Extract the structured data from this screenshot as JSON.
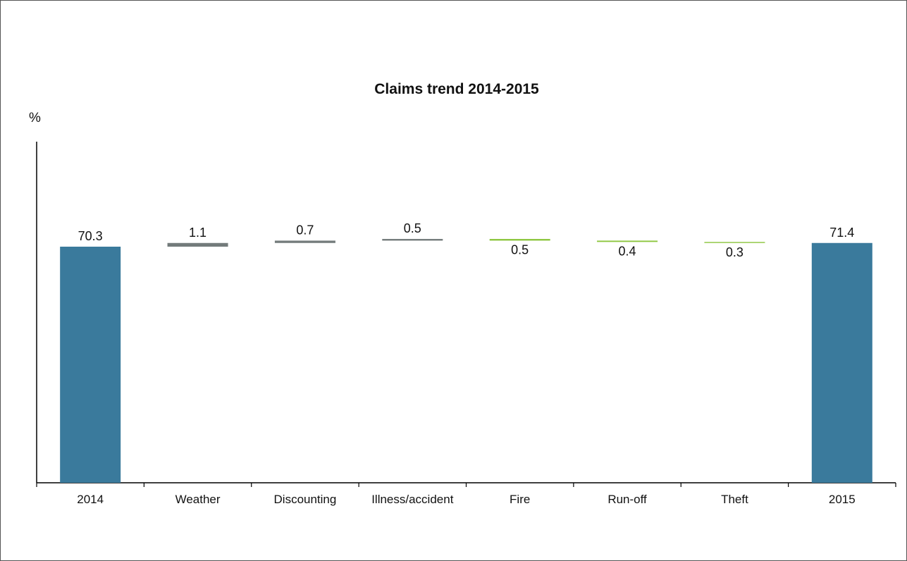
{
  "chart_data": {
    "type": "bar",
    "subtype": "waterfall",
    "title": "Claims trend 2014-2015",
    "ylabel": "%",
    "xlabel": "",
    "categories": [
      "2014",
      "Weather",
      "Discounting",
      "Illness/accident",
      "Fire",
      "Run-off",
      "Theft",
      "2015"
    ],
    "bars": [
      {
        "category": "2014",
        "kind": "total",
        "value": 70.3,
        "label": "70.3"
      },
      {
        "category": "Weather",
        "kind": "increase",
        "value": 1.1,
        "label": "1.1"
      },
      {
        "category": "Discounting",
        "kind": "increase",
        "value": 0.7,
        "label": "0.7"
      },
      {
        "category": "Illness/accident",
        "kind": "increase",
        "value": 0.5,
        "label": "0.5"
      },
      {
        "category": "Fire",
        "kind": "decrease",
        "value": 0.5,
        "label": "0.5"
      },
      {
        "category": "Run-off",
        "kind": "decrease",
        "value": 0.4,
        "label": "0.4"
      },
      {
        "category": "Theft",
        "kind": "decrease",
        "value": 0.3,
        "label": "0.3"
      },
      {
        "category": "2015",
        "kind": "total",
        "value": 71.4,
        "label": "71.4"
      }
    ],
    "grid": false,
    "legend": "none",
    "colors": {
      "total": "#3a7a9c",
      "increase": "#737b7b",
      "decrease": "#8dc63f",
      "axis": "#000000"
    }
  }
}
